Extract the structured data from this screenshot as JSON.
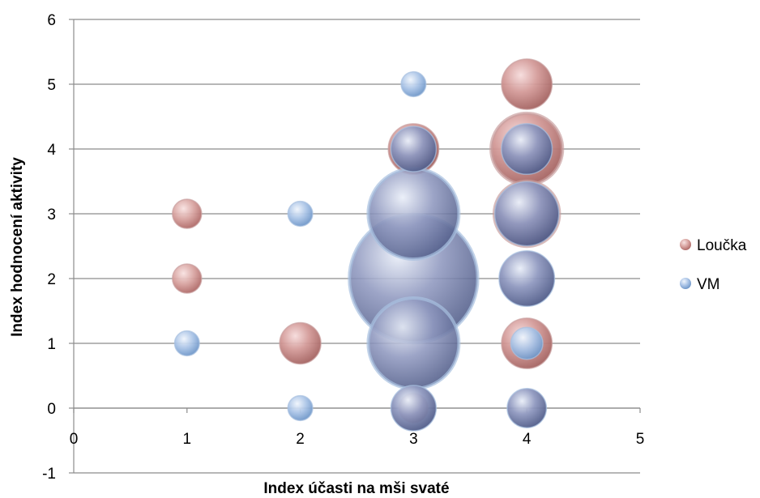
{
  "chart_data": {
    "type": "bubble",
    "xlabel": "Index účasti na mši svaté",
    "ylabel": "Index hodnocení aktivity",
    "xlim": [
      0,
      5
    ],
    "ylim": [
      -1,
      6
    ],
    "x_ticks": [
      "0",
      "1",
      "2",
      "3",
      "4",
      "5"
    ],
    "y_ticks": [
      "-1",
      "0",
      "1",
      "2",
      "3",
      "4",
      "5",
      "6"
    ],
    "grid": "horizontal",
    "legend_position": "right",
    "series": [
      {
        "name": "Loučka",
        "color": "#c0504d",
        "points": [
          {
            "x": 1,
            "y": 2,
            "size": 1
          },
          {
            "x": 1,
            "y": 3,
            "size": 1
          },
          {
            "x": 2,
            "y": 1,
            "size": 2
          },
          {
            "x": 3,
            "y": 4,
            "size": 3
          },
          {
            "x": 3,
            "y": 0,
            "size": 1
          },
          {
            "x": 4,
            "y": 5,
            "size": 3
          },
          {
            "x": 4,
            "y": 4,
            "size": 6
          },
          {
            "x": 4,
            "y": 3,
            "size": 5
          },
          {
            "x": 4,
            "y": 1,
            "size": 3
          }
        ]
      },
      {
        "name": "VM",
        "color": "#4f81bd",
        "points": [
          {
            "x": 1,
            "y": 1,
            "size": 0.6
          },
          {
            "x": 2,
            "y": 0,
            "size": 0.6
          },
          {
            "x": 2,
            "y": 3,
            "size": 0.6
          },
          {
            "x": 3,
            "y": 5,
            "size": 0.6
          },
          {
            "x": 3,
            "y": 4,
            "size": 2
          },
          {
            "x": 3,
            "y": 3,
            "size": 8
          },
          {
            "x": 3,
            "y": 2,
            "size": 16
          },
          {
            "x": 3,
            "y": 1,
            "size": 8
          },
          {
            "x": 3,
            "y": 0,
            "size": 2
          },
          {
            "x": 4,
            "y": 4,
            "size": 2.5
          },
          {
            "x": 4,
            "y": 3,
            "size": 4
          },
          {
            "x": 4,
            "y": 2,
            "size": 3
          },
          {
            "x": 4,
            "y": 1,
            "size": 1
          },
          {
            "x": 4,
            "y": 0,
            "size": 1.5
          }
        ]
      }
    ]
  }
}
